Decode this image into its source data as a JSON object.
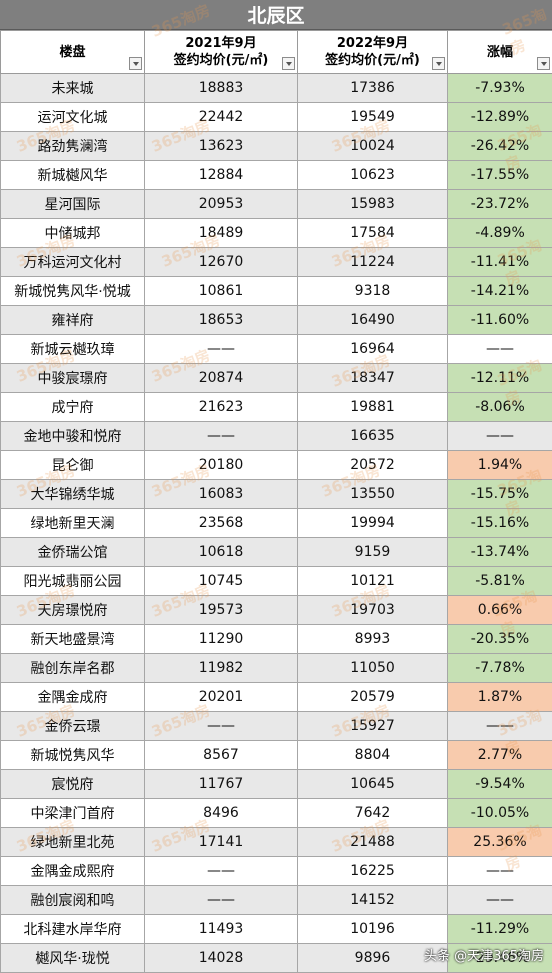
{
  "title": "北辰区",
  "headers": {
    "project": "楼盘",
    "y2021_line1": "2021年9月",
    "y2021_line2": "签约均价(元/㎡)",
    "y2022_line1": "2022年9月",
    "y2022_line2": "签约均价(元/㎡)",
    "change": "涨幅"
  },
  "rows": [
    {
      "name": "未来城",
      "p2021": "18883",
      "p2022": "17386",
      "change": "-7.93%",
      "tone": "g"
    },
    {
      "name": "运河文化城",
      "p2021": "22442",
      "p2022": "19549",
      "change": "-12.89%",
      "tone": "g"
    },
    {
      "name": "路劲隽澜湾",
      "p2021": "13623",
      "p2022": "10024",
      "change": "-26.42%",
      "tone": "g"
    },
    {
      "name": "新城樾风华",
      "p2021": "12884",
      "p2022": "10623",
      "change": "-17.55%",
      "tone": "g"
    },
    {
      "name": "星河国际",
      "p2021": "20953",
      "p2022": "15983",
      "change": "-23.72%",
      "tone": "g"
    },
    {
      "name": "中储城邦",
      "p2021": "18489",
      "p2022": "17584",
      "change": "-4.89%",
      "tone": "g"
    },
    {
      "name": "万科运河文化村",
      "p2021": "12670",
      "p2022": "11224",
      "change": "-11.41%",
      "tone": "g"
    },
    {
      "name": "新城悦隽风华·悦城",
      "p2021": "10861",
      "p2022": "9318",
      "change": "-14.21%",
      "tone": "g"
    },
    {
      "name": "雍祥府",
      "p2021": "18653",
      "p2022": "16490",
      "change": "-11.60%",
      "tone": "g"
    },
    {
      "name": "新城云樾玖璋",
      "p2021": "——",
      "p2022": "16964",
      "change": "——",
      "tone": ""
    },
    {
      "name": "中骏宸璟府",
      "p2021": "20874",
      "p2022": "18347",
      "change": "-12.11%",
      "tone": "g"
    },
    {
      "name": "成宁府",
      "p2021": "21623",
      "p2022": "19881",
      "change": "-8.06%",
      "tone": "g"
    },
    {
      "name": "金地中骏和悦府",
      "p2021": "——",
      "p2022": "16635",
      "change": "——",
      "tone": ""
    },
    {
      "name": "昆仑御",
      "p2021": "20180",
      "p2022": "20572",
      "change": "1.94%",
      "tone": "r"
    },
    {
      "name": "大华锦绣华城",
      "p2021": "16083",
      "p2022": "13550",
      "change": "-15.75%",
      "tone": "g"
    },
    {
      "name": "绿地新里天澜",
      "p2021": "23568",
      "p2022": "19994",
      "change": "-15.16%",
      "tone": "g"
    },
    {
      "name": "金侨瑞公馆",
      "p2021": "10618",
      "p2022": "9159",
      "change": "-13.74%",
      "tone": "g"
    },
    {
      "name": "阳光城翡丽公园",
      "p2021": "10745",
      "p2022": "10121",
      "change": "-5.81%",
      "tone": "g"
    },
    {
      "name": "天房璟悦府",
      "p2021": "19573",
      "p2022": "19703",
      "change": "0.66%",
      "tone": "r"
    },
    {
      "name": "新天地盛景湾",
      "p2021": "11290",
      "p2022": "8993",
      "change": "-20.35%",
      "tone": "g"
    },
    {
      "name": "融创东岸名郡",
      "p2021": "11982",
      "p2022": "11050",
      "change": "-7.78%",
      "tone": "g"
    },
    {
      "name": "金隅金成府",
      "p2021": "20201",
      "p2022": "20579",
      "change": "1.87%",
      "tone": "r"
    },
    {
      "name": "金侨云璟",
      "p2021": "——",
      "p2022": "15927",
      "change": "——",
      "tone": ""
    },
    {
      "name": "新城悦隽风华",
      "p2021": "8567",
      "p2022": "8804",
      "change": "2.77%",
      "tone": "r"
    },
    {
      "name": "宸悦府",
      "p2021": "11767",
      "p2022": "10645",
      "change": "-9.54%",
      "tone": "g"
    },
    {
      "name": "中梁津门首府",
      "p2021": "8496",
      "p2022": "7642",
      "change": "-10.05%",
      "tone": "g"
    },
    {
      "name": "绿地新里北苑",
      "p2021": "17141",
      "p2022": "21488",
      "change": "25.36%",
      "tone": "r"
    },
    {
      "name": "金隅金成熙府",
      "p2021": "——",
      "p2022": "16225",
      "change": "——",
      "tone": ""
    },
    {
      "name": "融创宸阅和鸣",
      "p2021": "——",
      "p2022": "14152",
      "change": "——",
      "tone": ""
    },
    {
      "name": "北科建水岸华府",
      "p2021": "11493",
      "p2022": "10196",
      "change": "-11.29%",
      "tone": "g"
    },
    {
      "name": "樾风华·珑悦",
      "p2021": "14028",
      "p2022": "9896",
      "change": "-29.46%",
      "tone": "g"
    }
  ],
  "watermark": "365淘房",
  "footer_credit": "头条 @天津365淘房",
  "colors": {
    "header_bar": "#7f7f7f",
    "decrease": "#c6e0b4",
    "increase": "#f8cbad",
    "stripe": "#e8e8e8"
  }
}
